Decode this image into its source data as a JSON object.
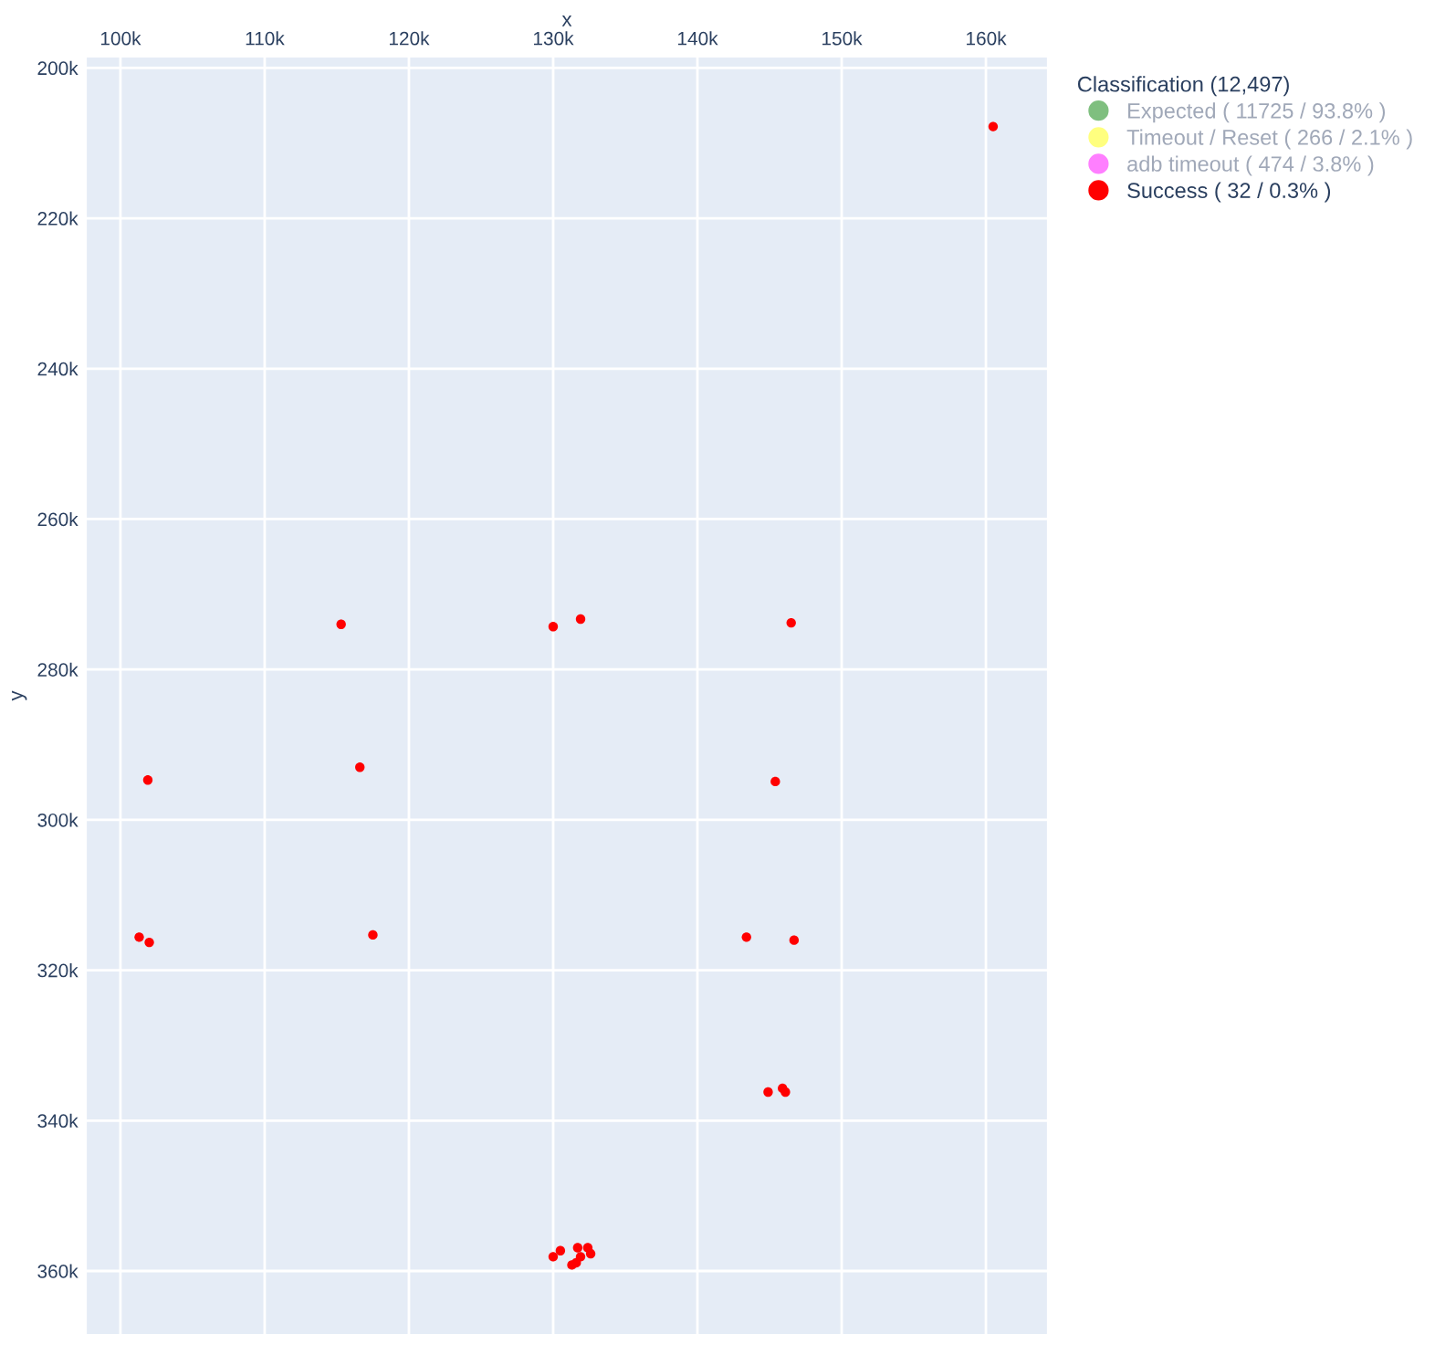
{
  "chart_data": {
    "type": "scatter",
    "xlabel": "x",
    "ylabel": "y",
    "legend_title": "Classification (12,497)",
    "legend": "right",
    "grid": true,
    "marker": "circle",
    "xlim": [
      97600,
      164300
    ],
    "ylim": [
      368500,
      198500
    ],
    "xticks": [
      {
        "value": 100000,
        "label": "100k"
      },
      {
        "value": 110000,
        "label": "110k"
      },
      {
        "value": 120000,
        "label": "120k"
      },
      {
        "value": 130000,
        "label": "130k"
      },
      {
        "value": 140000,
        "label": "140k"
      },
      {
        "value": 150000,
        "label": "150k"
      },
      {
        "value": 160000,
        "label": "160k"
      }
    ],
    "yticks": [
      {
        "value": 200000,
        "label": "200k"
      },
      {
        "value": 220000,
        "label": "220k"
      },
      {
        "value": 240000,
        "label": "240k"
      },
      {
        "value": 260000,
        "label": "260k"
      },
      {
        "value": 280000,
        "label": "280k"
      },
      {
        "value": 300000,
        "label": "300k"
      },
      {
        "value": 320000,
        "label": "320k"
      },
      {
        "value": 340000,
        "label": "340k"
      },
      {
        "value": 360000,
        "label": "360k"
      }
    ],
    "series": [
      {
        "name": "Expected ( 11725 / 93.8% )",
        "color": "#7fbf7f"
      },
      {
        "name": "Timeout / Reset ( 266 / 2.1% )",
        "color": "#ffff7f"
      },
      {
        "name": "adb timeout ( 474 / 3.8% )",
        "color": "#ff7fff"
      },
      {
        "name": "Success ( 32 / 0.3% )",
        "color": "#ff0000",
        "x": [
          160500,
          115300,
          130000,
          131900,
          146500,
          101900,
          116600,
          145400,
          101300,
          102000,
          117500,
          143400,
          146700,
          144900,
          null,
          145900,
          146100,
          130000,
          130500,
          131300,
          131600,
          null,
          131700,
          null,
          132600,
          132400,
          131900
        ],
        "values": [
          207800,
          274000,
          274300,
          273300,
          273800,
          294700,
          293000,
          294900,
          315600,
          316300,
          315300,
          315600,
          316000,
          336200,
          null,
          335700,
          336200,
          358100,
          357300,
          359200,
          358900,
          null,
          356900,
          null,
          357700,
          356900,
          358100
        ]
      }
    ]
  }
}
